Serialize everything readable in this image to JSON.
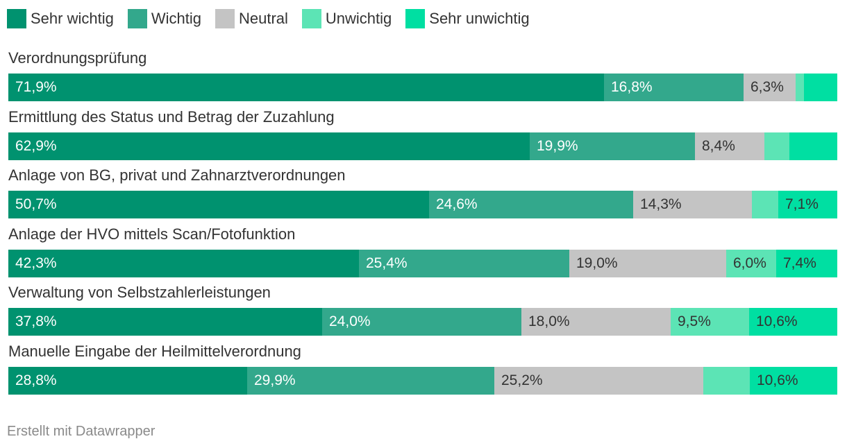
{
  "chart_data": {
    "type": "bar",
    "orientation": "horizontal",
    "stacked": true,
    "unit": "%",
    "legend_position": "top-left",
    "grid": false,
    "categories": [
      "Verordnungsprüfung",
      "Ermittlung des Status und Betrag der Zuzahlung",
      "Anlage von BG, privat und Zahnarztverordnungen",
      "Anlage der HVO mittels Scan/Fotofunktion",
      "Verwaltung von Selbstzahlerleistungen",
      "Manuelle Eingabe der Heilmittelverordnung"
    ],
    "series": [
      {
        "name": "Sehr wichtig",
        "color": "#00926f",
        "label_color": "#ffffff",
        "values": [
          71.9,
          62.9,
          50.7,
          42.3,
          37.8,
          28.8
        ],
        "labels": [
          "71,9%",
          "62,9%",
          "50,7%",
          "42,3%",
          "37,8%",
          "28,8%"
        ]
      },
      {
        "name": "Wichtig",
        "color": "#33a88c",
        "label_color": "#ffffff",
        "values": [
          16.8,
          19.9,
          24.6,
          25.4,
          24.0,
          29.9
        ],
        "labels": [
          "16,8%",
          "19,9%",
          "24,6%",
          "25,4%",
          "24,0%",
          "29,9%"
        ]
      },
      {
        "name": "Neutral",
        "color": "#c4c4c4",
        "label_color": "#333333",
        "values": [
          6.3,
          8.4,
          14.3,
          19.0,
          18.0,
          25.2
        ],
        "labels": [
          "6,3%",
          "8,4%",
          "14,3%",
          "19,0%",
          "18,0%",
          "25,2%"
        ]
      },
      {
        "name": "Unwichtig",
        "color": "#5ce4b5",
        "label_color": "#333333",
        "values": [
          1.0,
          3.0,
          3.2,
          6.0,
          9.5,
          5.6
        ],
        "labels": [
          "",
          "",
          "",
          "6,0%",
          "9,5%",
          ""
        ]
      },
      {
        "name": "Sehr unwichtig",
        "color": "#00dfa2",
        "label_color": "#333333",
        "values": [
          4.0,
          5.8,
          7.1,
          7.4,
          10.6,
          10.6
        ],
        "labels": [
          "",
          "",
          "7,1%",
          "7,4%",
          "10,6%",
          "10,6%"
        ]
      }
    ]
  },
  "footer": {
    "credit": "Erstellt mit Datawrapper"
  }
}
